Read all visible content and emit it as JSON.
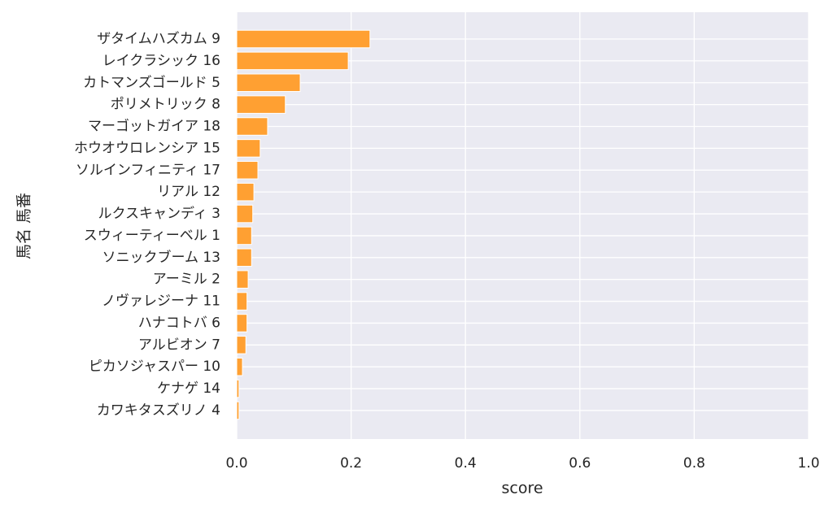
{
  "chart_data": {
    "type": "barh",
    "categories": [
      "ザタイムハズカム 9",
      "レイクラシック 16",
      "カトマンズゴールド 5",
      "ポリメトリック 8",
      "マーゴットガイア 18",
      "ホウオウロレンシア 15",
      "ソルインフィニティ 17",
      "リアル 12",
      "ルクスキャンディ 3",
      "スウィーティーベル 1",
      "ソニックブーム 13",
      "アーミル 2",
      "ノヴァレジーナ 11",
      "ハナコトバ 6",
      "アルビオン 7",
      "ピカソジャスパー 10",
      "ケナゲ 14",
      "カワキタスズリノ 4"
    ],
    "values": [
      0.233,
      0.195,
      0.111,
      0.085,
      0.054,
      0.041,
      0.037,
      0.03,
      0.028,
      0.026,
      0.026,
      0.02,
      0.018,
      0.018,
      0.016,
      0.01,
      0.004,
      0.004
    ],
    "color": "#ffa032",
    "xlabel": "score",
    "ylabel": "馬名 馬番",
    "xlim": [
      0,
      1
    ],
    "xticks": [
      {
        "value": 0,
        "label": "0.0"
      },
      0.2,
      0.4,
      0.6,
      0.8,
      {
        "value": 1,
        "label": "1.0"
      }
    ],
    "grid": true
  }
}
